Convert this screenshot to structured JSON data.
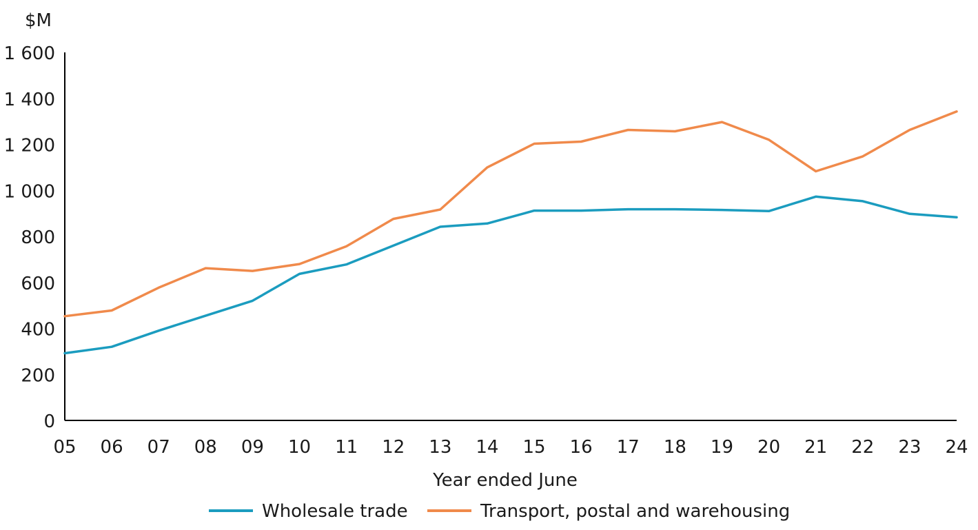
{
  "chart_data": {
    "type": "line",
    "title": "",
    "unit_label": "$M",
    "xlabel": "Year ended June",
    "ylabel": "",
    "categories": [
      "05",
      "06",
      "07",
      "08",
      "09",
      "10",
      "11",
      "12",
      "13",
      "14",
      "15",
      "16",
      "17",
      "18",
      "19",
      "20",
      "21",
      "22",
      "23",
      "24"
    ],
    "ylim": [
      0,
      1600
    ],
    "yticks": [
      0,
      200,
      400,
      600,
      800,
      1000,
      1200,
      1400,
      1600
    ],
    "ytick_labels": [
      "0",
      "200",
      "400",
      "600",
      "800",
      "1 000",
      "1 200",
      "1 400",
      "1 600"
    ],
    "grid": false,
    "legend_position": "bottom",
    "series": [
      {
        "name": "Wholesale trade",
        "color": "#1B9CBF",
        "values": [
          292,
          320,
          390,
          455,
          520,
          637,
          678,
          760,
          842,
          856,
          912,
          912,
          918,
          918,
          915,
          910,
          973,
          953,
          898,
          883
        ]
      },
      {
        "name": "Transport, postal and warehousing",
        "color": "#F08A4B",
        "values": [
          453,
          478,
          577,
          662,
          650,
          680,
          757,
          876,
          917,
          1100,
          1203,
          1212,
          1263,
          1257,
          1297,
          1220,
          1083,
          1148,
          1263,
          1343
        ]
      }
    ]
  }
}
